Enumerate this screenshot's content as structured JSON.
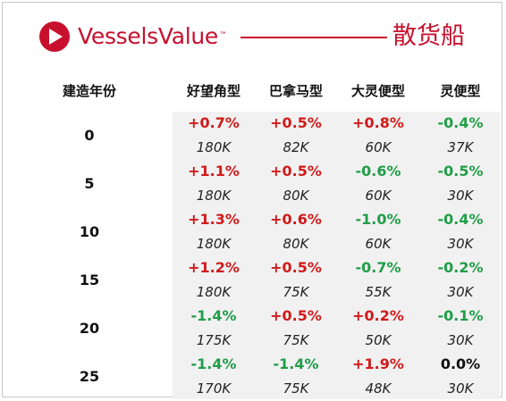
{
  "header": {
    "brand": "VesselsValue",
    "trademark": "™",
    "section_title": "散货船",
    "brand_color": "#c8102e"
  },
  "table": {
    "age_header": "建造年份",
    "columns": [
      "好望角型",
      "巴拿马型",
      "大灵便型",
      "灵便型"
    ],
    "rows": [
      {
        "age": "0",
        "cells": [
          {
            "change": "+0.7%",
            "value": "180K"
          },
          {
            "change": "+0.5%",
            "value": "82K"
          },
          {
            "change": "+0.8%",
            "value": "60K"
          },
          {
            "change": "-0.4%",
            "value": "37K"
          }
        ]
      },
      {
        "age": "5",
        "cells": [
          {
            "change": "+1.1%",
            "value": "180K"
          },
          {
            "change": "+0.5%",
            "value": "80K"
          },
          {
            "change": "-0.6%",
            "value": "60K"
          },
          {
            "change": "-0.5%",
            "value": "30K"
          }
        ]
      },
      {
        "age": "10",
        "cells": [
          {
            "change": "+1.3%",
            "value": "180K"
          },
          {
            "change": "+0.6%",
            "value": "80K"
          },
          {
            "change": "-1.0%",
            "value": "60K"
          },
          {
            "change": "-0.4%",
            "value": "30K"
          }
        ]
      },
      {
        "age": "15",
        "cells": [
          {
            "change": "+1.2%",
            "value": "180K"
          },
          {
            "change": "+0.5%",
            "value": "75K"
          },
          {
            "change": "-0.7%",
            "value": "55K"
          },
          {
            "change": "-0.2%",
            "value": "30K"
          }
        ]
      },
      {
        "age": "20",
        "cells": [
          {
            "change": "-1.4%",
            "value": "175K"
          },
          {
            "change": "+0.5%",
            "value": "75K"
          },
          {
            "change": "+0.2%",
            "value": "50K"
          },
          {
            "change": "-0.1%",
            "value": "30K"
          }
        ]
      },
      {
        "age": "25",
        "cells": [
          {
            "change": "-1.4%",
            "value": "170K"
          },
          {
            "change": "-1.4%",
            "value": "75K"
          },
          {
            "change": "+1.9%",
            "value": "48K"
          },
          {
            "change": "0.0%",
            "value": "30K"
          }
        ]
      }
    ],
    "colors": {
      "positive": "#d11a1a",
      "negative": "#1f9e48",
      "neutral": "#111111",
      "shade": "#f1f1f1"
    }
  }
}
